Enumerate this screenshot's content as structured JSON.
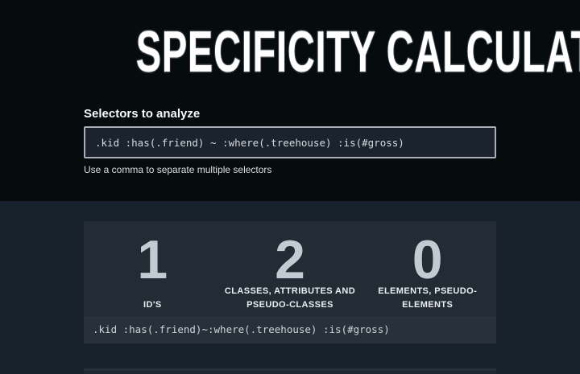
{
  "title": "SPECIFICITY CALCULATOR",
  "form": {
    "label": "Selectors to analyze",
    "input_value": ".kid :has(.friend) ~ :where(.treehouse) :is(#gross)",
    "helper": "Use a comma to separate multiple selectors"
  },
  "result": {
    "stats": [
      {
        "value": "1",
        "label": "ID'S"
      },
      {
        "value": "2",
        "label": "CLASSES, ATTRIBUTES AND PSEUDO-CLASSES"
      },
      {
        "value": "0",
        "label": "ELEMENTS, PSEUDO-ELEMENTS"
      }
    ],
    "selector_display": ".kid :has(.friend)~:where(.treehouse) :is(#gross)"
  },
  "colors": {
    "hero_background": "#060b0e",
    "results_background": "#17222c",
    "card_background": "#232c35",
    "selector_bar_background": "#28313a",
    "input_background": "#1b242e",
    "input_border": "#a9aeb4",
    "stat_number": "#c3cad2",
    "text_primary": "#ffffff"
  }
}
